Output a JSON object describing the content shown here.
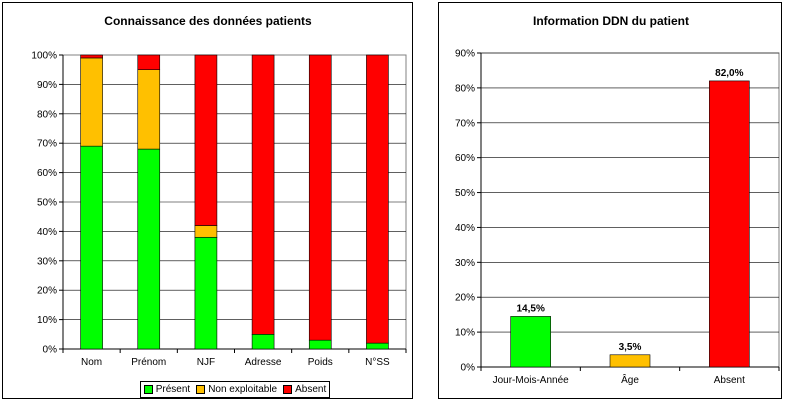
{
  "chart_data": [
    {
      "type": "bar",
      "stacked": true,
      "title": "Connaissance des données patients",
      "categories": [
        "Nom",
        "Prénom",
        "NJF",
        "Adresse",
        "Poids",
        "N°SS"
      ],
      "series": [
        {
          "name": "Présent",
          "color": "#00ff00",
          "values": [
            69,
            68,
            38,
            5,
            3,
            2
          ]
        },
        {
          "name": "Non exploitable",
          "color": "#ffc000",
          "values": [
            30,
            27,
            4,
            0,
            0,
            0
          ]
        },
        {
          "name": "Absent",
          "color": "#ff0000",
          "values": [
            1,
            5,
            58,
            95,
            97,
            98
          ]
        }
      ],
      "ylim": [
        0,
        100
      ],
      "yticks": [
        "0%",
        "10%",
        "20%",
        "30%",
        "40%",
        "50%",
        "60%",
        "70%",
        "80%",
        "90%",
        "100%"
      ],
      "grid": true,
      "legend_position": "bottom"
    },
    {
      "type": "bar",
      "title": "Information DDN du patient",
      "categories": [
        "Jour-Mois-Année",
        "Âge",
        "Absent"
      ],
      "values": [
        14.5,
        3.5,
        82.0
      ],
      "colors": [
        "#00ff00",
        "#ffc000",
        "#ff0000"
      ],
      "data_labels": [
        "14,5%",
        "3,5%",
        "82,0%"
      ],
      "ylim": [
        0,
        90
      ],
      "yticks": [
        "0%",
        "10%",
        "20%",
        "30%",
        "40%",
        "50%",
        "60%",
        "70%",
        "80%",
        "90%"
      ],
      "grid": true
    }
  ]
}
